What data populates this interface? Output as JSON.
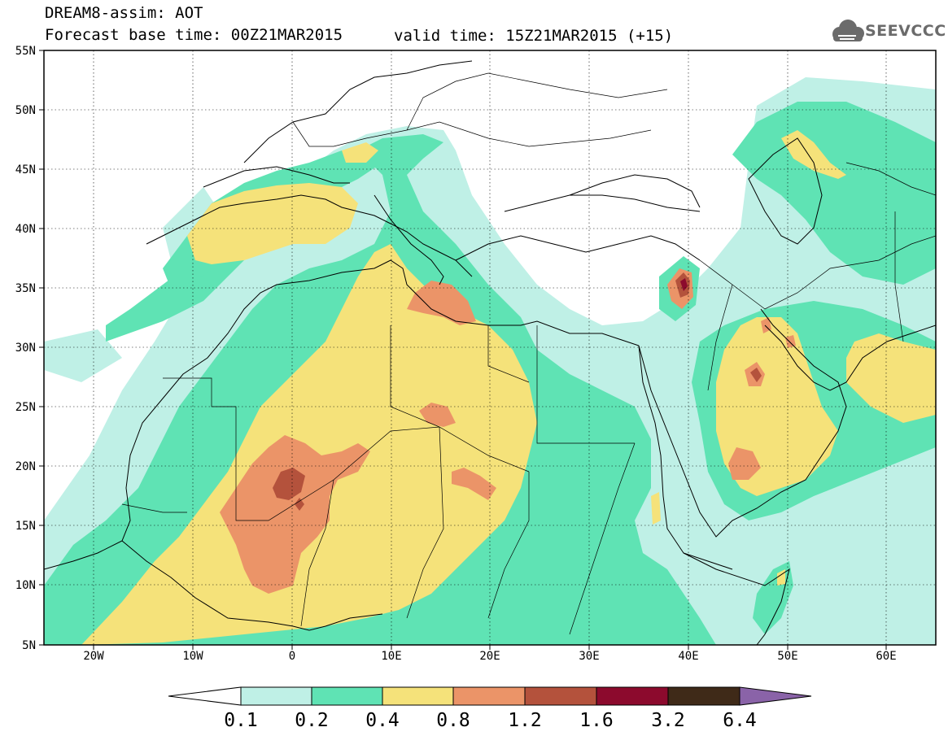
{
  "header": {
    "line1": "DREAM8-assim: AOT",
    "line2": "Forecast base time: 00Z21MAR2015",
    "valid": "valid time: 15Z21MAR2015 (+15)"
  },
  "logo": {
    "text": "SEEVCCC",
    "color": "#6b6b6b"
  },
  "axes": {
    "lat_labels": [
      "55N",
      "50N",
      "45N",
      "40N",
      "35N",
      "30N",
      "25N",
      "20N",
      "15N",
      "10N",
      "5N"
    ],
    "lon_labels": [
      "20W",
      "10W",
      "0",
      "10E",
      "20E",
      "30E",
      "40E",
      "50E",
      "60E"
    ]
  },
  "colorbar": {
    "labels": [
      "0.1",
      "0.2",
      "0.4",
      "0.8",
      "1.2",
      "1.6",
      "3.2",
      "6.4"
    ],
    "colors": [
      "#ffffff",
      "#bff0e6",
      "#5fe3b4",
      "#f5e27a",
      "#eb9468",
      "#b4523c",
      "#8c0a2d",
      "#3f2a18",
      "#8a63a8"
    ]
  },
  "colors": {
    "c1": "#bff0e6",
    "c2": "#5fe3b4",
    "c3": "#f5e27a",
    "c4": "#eb9468",
    "c5": "#b4523c",
    "c6": "#8c0a2d"
  }
}
